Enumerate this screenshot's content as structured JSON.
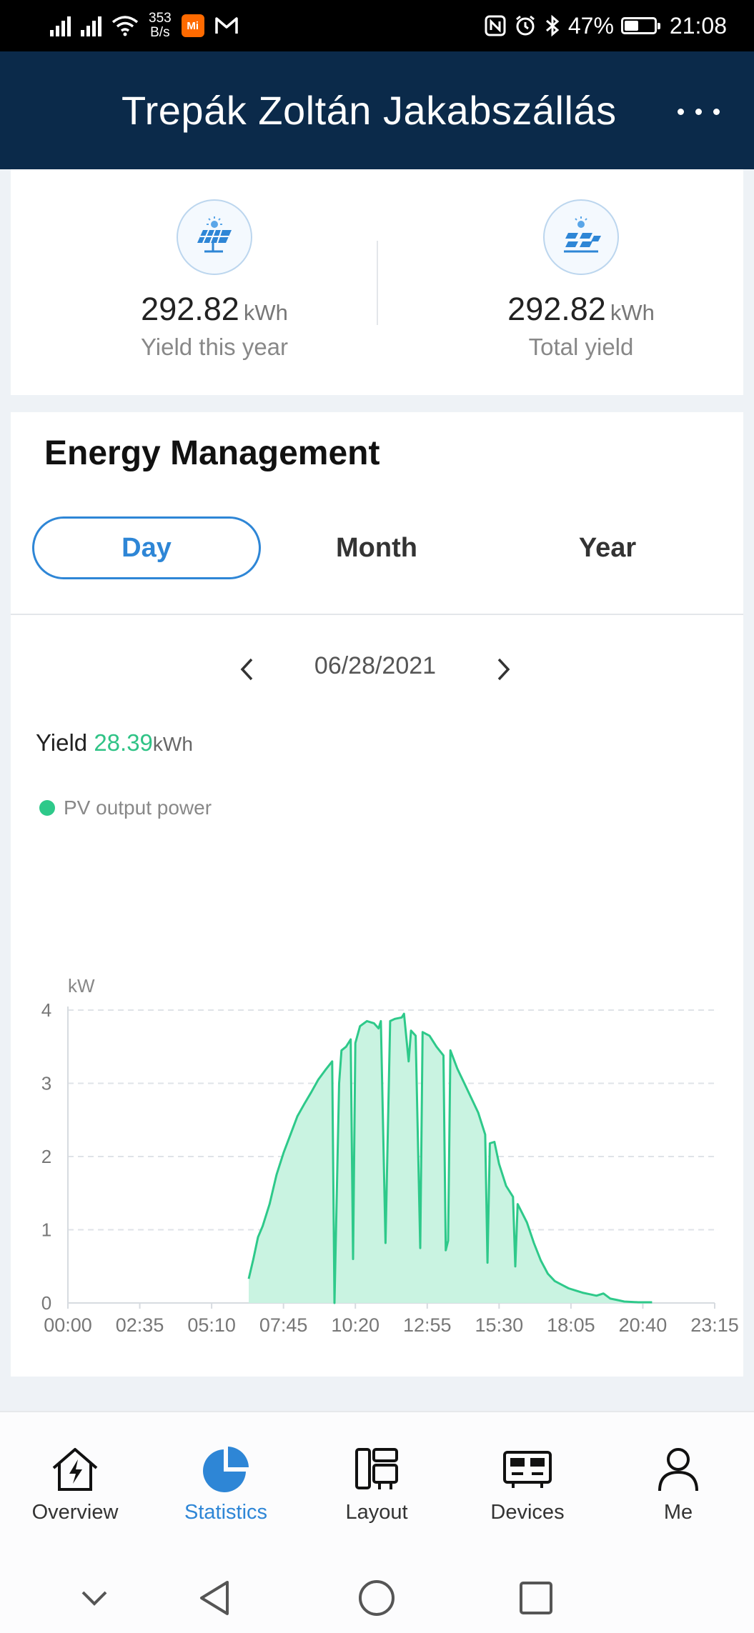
{
  "status_bar": {
    "net_speed_value": "353",
    "net_speed_unit": "B/s",
    "app_badge": "Mi",
    "battery_percent": "47%",
    "battery_level": 0.47,
    "time": "21:08"
  },
  "header": {
    "title": "Trepák Zoltán Jakabszállás"
  },
  "yield_summary": {
    "this_year": {
      "value": "292.82",
      "unit": "kWh",
      "label": "Yield this year",
      "icon": "solar-panel-sun-icon"
    },
    "total": {
      "value": "292.82",
      "unit": "kWh",
      "label": "Total yield",
      "icon": "solar-array-icon"
    }
  },
  "energy": {
    "title": "Energy Management",
    "tabs": [
      {
        "label": "Day",
        "active": true
      },
      {
        "label": "Month",
        "active": false
      },
      {
        "label": "Year",
        "active": false
      }
    ],
    "date": "06/28/2021",
    "yield_label": "Yield",
    "yield_value": "28.39",
    "yield_unit": "kWh"
  },
  "chart_data": {
    "type": "area",
    "series": [
      {
        "name": "PV output power",
        "color": "#2ec98a"
      }
    ],
    "ylabel": "kW",
    "ylim": [
      0,
      4
    ],
    "yticks": [
      "0",
      "1",
      "2",
      "3",
      "4"
    ],
    "xticks": [
      "00:00",
      "02:35",
      "05:10",
      "07:45",
      "10:20",
      "12:55",
      "15:30",
      "18:05",
      "20:40",
      "23:15"
    ],
    "grid": "dashed horizontal",
    "points": [
      [
        "06:30",
        0.33
      ],
      [
        "06:40",
        0.6
      ],
      [
        "06:50",
        0.9
      ],
      [
        "07:00",
        1.05
      ],
      [
        "07:15",
        1.35
      ],
      [
        "07:30",
        1.75
      ],
      [
        "07:45",
        2.05
      ],
      [
        "08:00",
        2.3
      ],
      [
        "08:15",
        2.55
      ],
      [
        "08:30",
        2.72
      ],
      [
        "08:45",
        2.88
      ],
      [
        "09:00",
        3.05
      ],
      [
        "09:15",
        3.18
      ],
      [
        "09:30",
        3.3
      ],
      [
        "09:35",
        0.0
      ],
      [
        "09:45",
        3.0
      ],
      [
        "09:50",
        3.45
      ],
      [
        "10:00",
        3.5
      ],
      [
        "10:10",
        3.6
      ],
      [
        "10:15",
        0.6
      ],
      [
        "10:20",
        3.55
      ],
      [
        "10:30",
        3.78
      ],
      [
        "10:45",
        3.85
      ],
      [
        "11:00",
        3.82
      ],
      [
        "11:10",
        3.75
      ],
      [
        "11:15",
        3.85
      ],
      [
        "11:25",
        0.82
      ],
      [
        "11:35",
        3.85
      ],
      [
        "11:45",
        3.88
      ],
      [
        "12:00",
        3.9
      ],
      [
        "12:05",
        3.95
      ],
      [
        "12:15",
        3.3
      ],
      [
        "12:20",
        3.72
      ],
      [
        "12:30",
        3.65
      ],
      [
        "12:40",
        0.75
      ],
      [
        "12:45",
        3.7
      ],
      [
        "13:00",
        3.65
      ],
      [
        "13:15",
        3.5
      ],
      [
        "13:30",
        3.38
      ],
      [
        "13:35",
        0.72
      ],
      [
        "13:40",
        0.85
      ],
      [
        "13:45",
        3.45
      ],
      [
        "14:00",
        3.2
      ],
      [
        "14:15",
        3.0
      ],
      [
        "14:30",
        2.8
      ],
      [
        "14:45",
        2.6
      ],
      [
        "15:00",
        2.3
      ],
      [
        "15:05",
        0.55
      ],
      [
        "15:10",
        2.18
      ],
      [
        "15:20",
        2.2
      ],
      [
        "15:30",
        1.9
      ],
      [
        "15:45",
        1.6
      ],
      [
        "16:00",
        1.45
      ],
      [
        "16:05",
        0.5
      ],
      [
        "16:10",
        1.35
      ],
      [
        "16:30",
        1.1
      ],
      [
        "16:45",
        0.82
      ],
      [
        "17:00",
        0.58
      ],
      [
        "17:15",
        0.4
      ],
      [
        "17:30",
        0.3
      ],
      [
        "17:45",
        0.25
      ],
      [
        "18:00",
        0.2
      ],
      [
        "18:15",
        0.17
      ],
      [
        "18:30",
        0.14
      ],
      [
        "18:45",
        0.12
      ],
      [
        "19:00",
        0.1
      ],
      [
        "19:15",
        0.13
      ],
      [
        "19:30",
        0.06
      ],
      [
        "19:45",
        0.04
      ],
      [
        "20:00",
        0.02
      ],
      [
        "20:30",
        0.01
      ],
      [
        "21:00",
        0.01
      ]
    ]
  },
  "bottom_nav": [
    {
      "label": "Overview",
      "icon": "house-bolt-icon",
      "active": false
    },
    {
      "label": "Statistics",
      "icon": "pie-chart-icon",
      "active": true
    },
    {
      "label": "Layout",
      "icon": "layout-icon",
      "active": false
    },
    {
      "label": "Devices",
      "icon": "devices-icon",
      "active": false
    },
    {
      "label": "Me",
      "icon": "person-icon",
      "active": false
    }
  ],
  "system_nav": [
    "collapse-icon",
    "back-icon",
    "home-icon",
    "recents-icon"
  ]
}
